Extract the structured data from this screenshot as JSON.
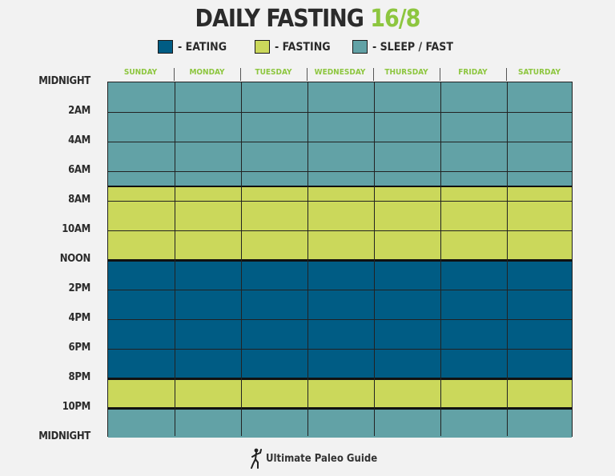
{
  "title": {
    "main": "DAILY FASTING",
    "accent": "16/8"
  },
  "colors": {
    "eating": "#005c84",
    "fasting": "#cbd85b",
    "sleep_fast": "#62a2a6",
    "accent": "#8dc63f"
  },
  "legend": [
    {
      "label": "- EATING",
      "color": "#005c84"
    },
    {
      "label": "- FASTING",
      "color": "#cbd85b"
    },
    {
      "label": "- SLEEP / FAST",
      "color": "#62a2a6"
    }
  ],
  "days": [
    "SUNDAY",
    "MONDAY",
    "TUESDAY",
    "WEDNESDAY",
    "THURSDAY",
    "FRIDAY",
    "SATURDAY"
  ],
  "time_labels": [
    {
      "label": "MIDNIGHT",
      "hour": 0
    },
    {
      "label": "2AM",
      "hour": 2
    },
    {
      "label": "4AM",
      "hour": 4
    },
    {
      "label": "6AM",
      "hour": 6
    },
    {
      "label": "8AM",
      "hour": 8
    },
    {
      "label": "10AM",
      "hour": 10
    },
    {
      "label": "NOON",
      "hour": 12
    },
    {
      "label": "2PM",
      "hour": 14
    },
    {
      "label": "4PM",
      "hour": 16
    },
    {
      "label": "6PM",
      "hour": 18
    },
    {
      "label": "8PM",
      "hour": 20
    },
    {
      "label": "10PM",
      "hour": 22
    },
    {
      "label": "MIDNIGHT",
      "hour": 24
    }
  ],
  "schedule": [
    {
      "type": "sleep_fast",
      "start_hour": 0,
      "end_hour": 7
    },
    {
      "type": "fasting",
      "start_hour": 7,
      "end_hour": 12
    },
    {
      "type": "eating",
      "start_hour": 12,
      "end_hour": 20
    },
    {
      "type": "fasting",
      "start_hour": 20,
      "end_hour": 22
    },
    {
      "type": "sleep_fast",
      "start_hour": 22,
      "end_hour": 24
    }
  ],
  "logo": {
    "text": "Ultimate Paleo Guide"
  }
}
